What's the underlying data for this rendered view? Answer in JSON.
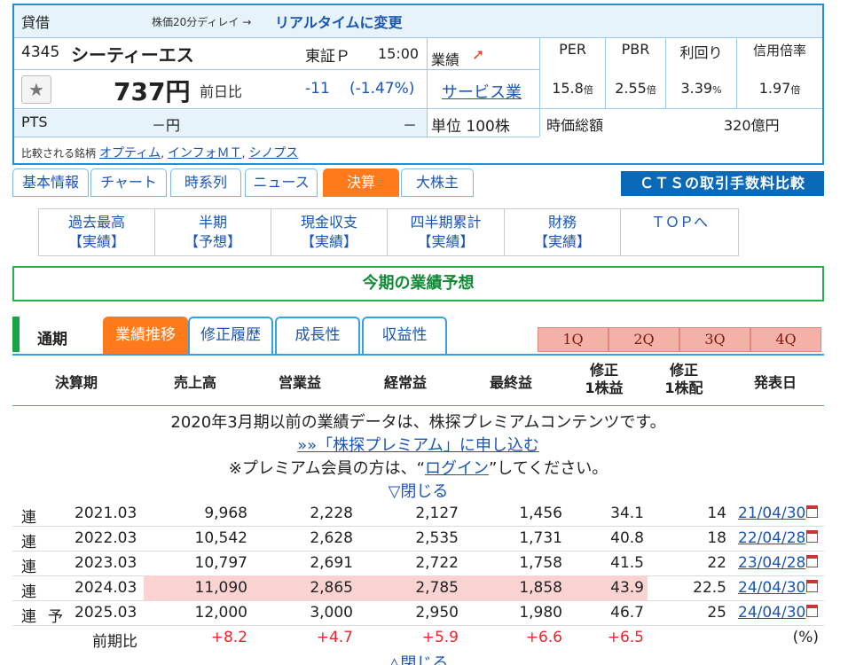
{
  "header": {
    "title": "貸借",
    "delay_note": "株価20分ディレイ →",
    "realtime_link": "リアルタイムに変更"
  },
  "stock": {
    "code": "4345",
    "name": "シーティーエス",
    "market": "東証Ｐ",
    "time": "15:00",
    "gyoseki_label": "業績",
    "price": "737円",
    "prev_label": "前日比",
    "change": "-11",
    "change_pct": "(-1.47%)",
    "sector": "サービス業",
    "pts_label": "PTS",
    "pts_value": "－円",
    "pts_change": "－",
    "unit": "単位 100株",
    "market_cap_label": "時価総額",
    "market_cap_value": "320億円"
  },
  "ratios": {
    "per_label": "PER",
    "per_value": "15.8",
    "per_unit": "倍",
    "pbr_label": "PBR",
    "pbr_value": "2.55",
    "pbr_unit": "倍",
    "yield_label": "利回り",
    "yield_value": "3.39",
    "yield_unit": "%",
    "credit_label": "信用倍率",
    "credit_value": "1.97",
    "credit_unit": "倍"
  },
  "compare": {
    "label": "比較される銘柄",
    "items": [
      "オプティム",
      "インフォＭＴ",
      "シノプス"
    ]
  },
  "main_tabs": [
    "基本情報",
    "チャート",
    "時系列",
    "ニュース",
    "決算",
    "大株主"
  ],
  "cts_banner": "ＣＴＳの取引手数料比較",
  "sub_nav": [
    {
      "line1": "過去最高",
      "line2": "【実績】"
    },
    {
      "line1": "半期",
      "line2": "【予想】"
    },
    {
      "line1": "現金収支",
      "line2": "【実績】"
    },
    {
      "line1": "四半期累計",
      "line2": "【実績】"
    },
    {
      "line1": "財務",
      "line2": "【実績】"
    },
    {
      "line1": "ＴＯＰへ",
      "line2": ""
    }
  ],
  "section_title": "今期の業績予想",
  "data_tabs": {
    "period_label": "通期",
    "tabs": [
      "業績推移",
      "修正履歴",
      "成長性",
      "収益性"
    ],
    "quarters": [
      "1Q",
      "2Q",
      "3Q",
      "4Q"
    ]
  },
  "table": {
    "headers": [
      "決算期",
      "売上高",
      "営業益",
      "経常益",
      "最終益",
      "修正",
      "1株益",
      "修正",
      "1株配",
      "発表日"
    ],
    "rows": [
      {
        "type": "連",
        "mark": "",
        "period": "2021.03",
        "sales": "9,968",
        "op": "2,228",
        "ord": "2,127",
        "net": "1,456",
        "eps": "34.1",
        "dps": "14",
        "date": "21/04/30"
      },
      {
        "type": "連",
        "mark": "",
        "period": "2022.03",
        "sales": "10,542",
        "op": "2,628",
        "ord": "2,535",
        "net": "1,731",
        "eps": "40.8",
        "dps": "18",
        "date": "22/04/28"
      },
      {
        "type": "連",
        "mark": "",
        "period": "2023.03",
        "sales": "10,797",
        "op": "2,691",
        "ord": "2,722",
        "net": "1,758",
        "eps": "41.5",
        "dps": "22",
        "date": "23/04/28"
      },
      {
        "type": "連",
        "mark": "",
        "period": "2024.03",
        "sales": "11,090",
        "op": "2,865",
        "ord": "2,785",
        "net": "1,858",
        "eps": "43.9",
        "dps": "22.5",
        "date": "24/04/30"
      },
      {
        "type": "連",
        "mark": "予",
        "period": "2025.03",
        "sales": "12,000",
        "op": "3,000",
        "ord": "2,950",
        "net": "1,980",
        "eps": "46.7",
        "dps": "25",
        "date": "24/04/30"
      }
    ],
    "yoy": {
      "label": "前期比",
      "sales": "+8.2",
      "op": "+4.7",
      "ord": "+5.9",
      "net": "+6.6",
      "eps": "+6.5",
      "unit": "(%)"
    }
  },
  "premium": {
    "line1": "2020年3月期以前の業績データは、株探プレミアムコンテンツです。",
    "link": "»»「株探プレミアム」に申し込む",
    "line3_pre": "※プレミアム会員の方は、“",
    "login": "ログイン",
    "line3_post": "”してください。",
    "close": "▽閉じる",
    "close_bottom": "△閉じる"
  }
}
